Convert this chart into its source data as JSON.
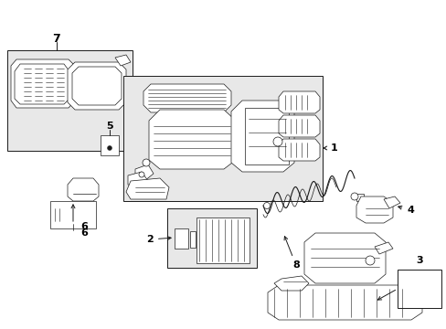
{
  "bg_color": "#ffffff",
  "box_fill": "#e8e8e8",
  "line_color": "#1a1a1a",
  "white": "#ffffff",
  "figsize": [
    4.89,
    3.6
  ],
  "dpi": 100,
  "xlim": [
    0,
    489
  ],
  "ylim": [
    0,
    360
  ]
}
